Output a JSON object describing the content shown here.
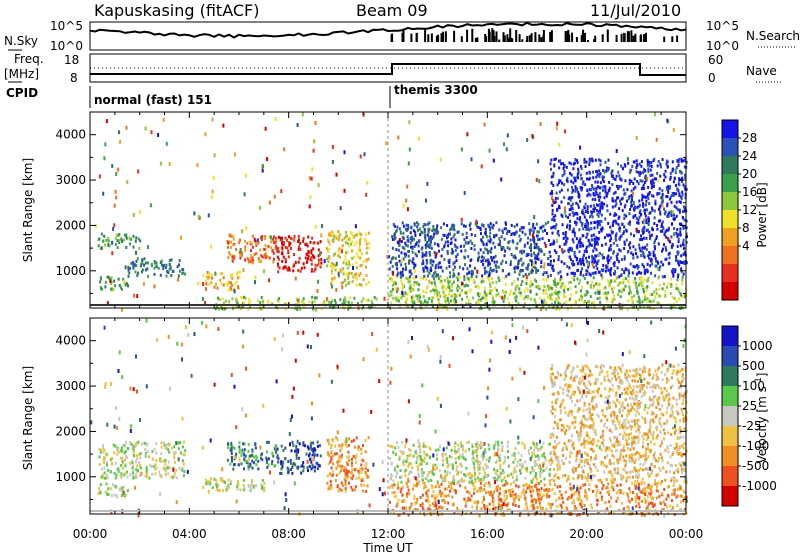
{
  "header": {
    "station": "Kapuskasing (fitACF)",
    "beam": "Beam 09",
    "date": "11/Jul/2010"
  },
  "noise_panel": {
    "left_label": "N.Sky",
    "right_label": "N.Search",
    "left_ticks": [
      "10^5",
      "10^0"
    ],
    "right_ticks": [
      "10^5",
      "10^0"
    ]
  },
  "freq_panel": {
    "left_label_1": "Freq.",
    "left_label_2": "[MHz]",
    "right_label": "Nave",
    "left_ticks": [
      "18",
      "8"
    ],
    "right_ticks": [
      "60",
      "0"
    ]
  },
  "cpid": {
    "label": "CPID",
    "segments": [
      {
        "name": "normal (fast) 151",
        "start_hour": 0,
        "end_hour": 12
      },
      {
        "name": "themis 3300",
        "start_hour": 12,
        "end_hour": 24
      }
    ]
  },
  "chart_data": [
    {
      "type": "heatmap",
      "title": "Power",
      "ylabel": "Slant Range [km]",
      "xlabel": "",
      "xlim": [
        0,
        24
      ],
      "ylim": [
        180,
        4500
      ],
      "yticks": [
        1000,
        2000,
        3000,
        4000
      ],
      "colorbar": {
        "label": "Power [dB]",
        "ticks": [
          "28",
          "24",
          "20",
          "16",
          "12",
          "8",
          "4"
        ],
        "colors": [
          "#1414e6",
          "#2a52b8",
          "#2f7a5a",
          "#3aa04a",
          "#8cc83c",
          "#f0e02a",
          "#f0a020",
          "#f07020",
          "#e83020",
          "#d40000"
        ]
      },
      "regions": [
        {
          "t": [
            0.3,
            2.0
          ],
          "r": [
            1500,
            1850
          ],
          "level": 3
        },
        {
          "t": [
            0.3,
            1.5
          ],
          "r": [
            600,
            900
          ],
          "level": 3
        },
        {
          "t": [
            1.5,
            3.8
          ],
          "r": [
            900,
            1300
          ],
          "level": 2
        },
        {
          "t": [
            4.5,
            6.0
          ],
          "r": [
            600,
            1000
          ],
          "level": 6
        },
        {
          "t": [
            5.5,
            7.5
          ],
          "r": [
            1200,
            1800
          ],
          "level": 7
        },
        {
          "t": [
            7.5,
            9.3
          ],
          "r": [
            1000,
            1800
          ],
          "level": 9
        },
        {
          "t": [
            9.5,
            11.2
          ],
          "r": [
            700,
            1900
          ],
          "level": 5
        },
        {
          "t": [
            5.0,
            11.5
          ],
          "r": [
            180,
            450
          ],
          "level": 4
        },
        {
          "t": [
            12.0,
            24.0
          ],
          "r": [
            180,
            900
          ],
          "level": 4
        },
        {
          "t": [
            12.0,
            18.5
          ],
          "r": [
            900,
            2100
          ],
          "level": 1
        },
        {
          "t": [
            18.5,
            24.0
          ],
          "r": [
            900,
            3500
          ],
          "level": 0
        }
      ]
    },
    {
      "type": "heatmap",
      "title": "Velocity",
      "ylabel": "Slant Range [km]",
      "xlabel": "Time UT",
      "xlim": [
        0,
        24
      ],
      "ylim": [
        180,
        4500
      ],
      "yticks": [
        1000,
        2000,
        3000,
        4000
      ],
      "xticks": [
        "00:00",
        "04:00",
        "08:00",
        "12:00",
        "16:00",
        "20:00",
        "00:00"
      ],
      "colorbar": {
        "label": "Velocity [m s^-1]",
        "ticks": [
          "1000",
          "500",
          "100",
          "25",
          "-25",
          "-100",
          "-500",
          "-1000"
        ],
        "colors": [
          "#1414c8",
          "#2a4ab4",
          "#2f7a5a",
          "#5ac84a",
          "#c8c8c0",
          "#f0c040",
          "#f09020",
          "#f05020",
          "#d40000"
        ]
      },
      "regions": [
        {
          "t": [
            0.3,
            3.8
          ],
          "r": [
            1000,
            1800
          ],
          "level": 4
        },
        {
          "t": [
            0.3,
            1.5
          ],
          "r": [
            600,
            900
          ],
          "level": 4
        },
        {
          "t": [
            4.5,
            7.0
          ],
          "r": [
            700,
            1000
          ],
          "level": 4
        },
        {
          "t": [
            5.5,
            7.5
          ],
          "r": [
            1200,
            1800
          ],
          "level": 2
        },
        {
          "t": [
            7.5,
            9.3
          ],
          "r": [
            1100,
            1800
          ],
          "level": 1
        },
        {
          "t": [
            9.5,
            11.2
          ],
          "r": [
            700,
            1900
          ],
          "level": 6
        },
        {
          "t": [
            12.0,
            24.0
          ],
          "r": [
            180,
            900
          ],
          "level": 6
        },
        {
          "t": [
            12.0,
            18.5
          ],
          "r": [
            900,
            1800
          ],
          "level": 4
        },
        {
          "t": [
            18.5,
            24.0
          ],
          "r": [
            900,
            3500
          ],
          "level": 5
        }
      ]
    }
  ]
}
